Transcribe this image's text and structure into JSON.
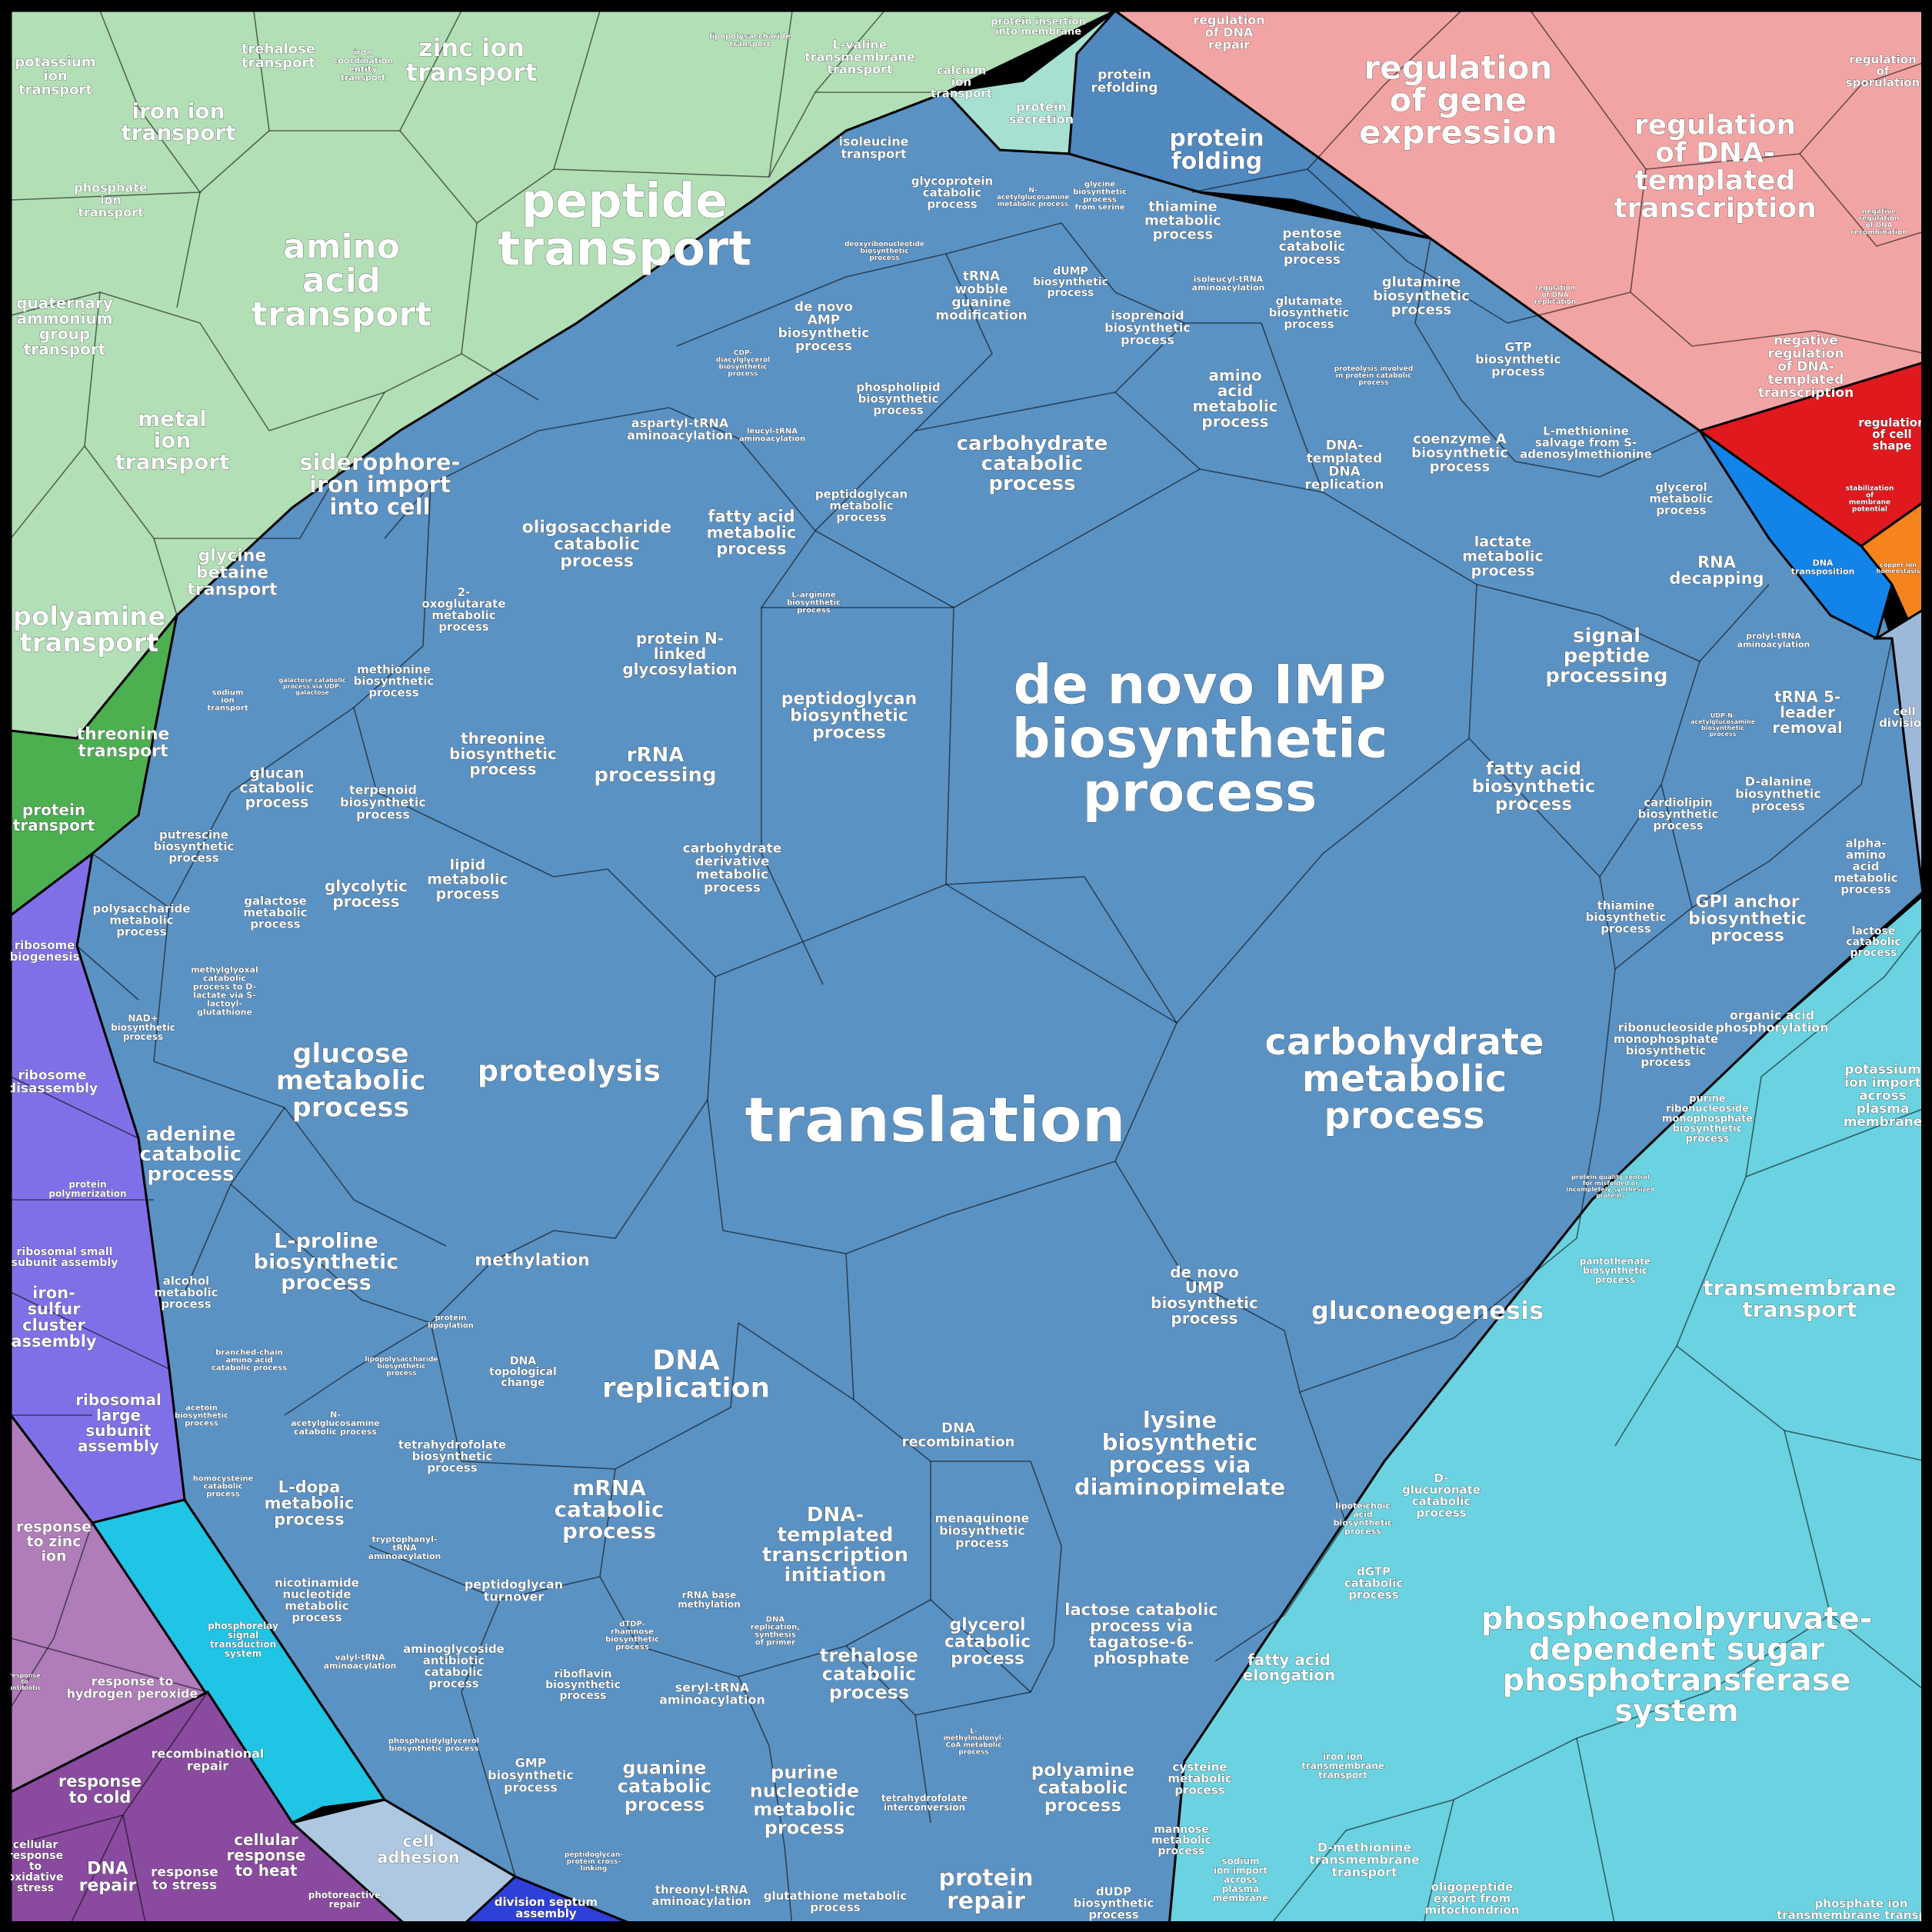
{
  "colors": {
    "transport_green": "#b3dfb6",
    "protein_transport_green": "#4caf50",
    "secretion_mint": "#a6e0d2",
    "folding_blue": "#5088c0",
    "metabolism_blue": "#5b92c4",
    "regulation_pink": "#f2a4a4",
    "cell_shape_red": "#e0191f",
    "copper_orange": "#f6841d",
    "dna_transposition_blue": "#1283e8",
    "cell_division_lightblue": "#9db8d8",
    "transmembrane_cyan": "#6ad2e0",
    "ribosome_purple": "#8070e8",
    "phosphorelay_cyan": "#20c4e4",
    "cell_adhesion_grey": "#adc8e0",
    "division_septum_blue": "#2d40d8",
    "stress_mauve": "#b07cba",
    "dna_repair_purple": "#8a4aa0"
  },
  "labels": {
    "potassium_ion_transport": [
      "potassium",
      "ion",
      "transport"
    ],
    "trehalose_transport": [
      "trehalose",
      "transport"
    ],
    "iron_coordination_entity_transport": [
      "iron",
      "coordination",
      "entity",
      "transport"
    ],
    "zinc_ion_transport": [
      "zinc ion",
      "transport"
    ],
    "lipopolysaccharide_transport": [
      "lipopolysaccharide",
      "transport"
    ],
    "l_valine_transmembrane_transport": [
      "L-valine",
      "transmembrane",
      "transport"
    ],
    "calcium_ion_transport": [
      "calcium",
      "ion",
      "transport"
    ],
    "protein_insertion_into_membrane": [
      "protein insertion",
      "into membrane"
    ],
    "iron_ion_transport": [
      "iron ion",
      "transport"
    ],
    "phosphate_ion_transport": [
      "phosphate",
      "ion",
      "transport"
    ],
    "amino_acid_transport": [
      "amino",
      "acid",
      "transport"
    ],
    "peptide_transport": [
      "peptide",
      "transport"
    ],
    "isoleucine_transport": [
      "isoleucine",
      "transport"
    ],
    "protein_secretion": [
      "protein",
      "secretion"
    ],
    "quaternary_ammonium_group_transport": [
      "quaternary",
      "ammonium",
      "group",
      "transport"
    ],
    "metal_ion_transport": [
      "metal",
      "ion",
      "transport"
    ],
    "siderophore_iron_import_into_cell": [
      "siderophore-",
      "iron import",
      "into cell"
    ],
    "glycine_betaine_transport": [
      "glycine",
      "betaine",
      "transport"
    ],
    "polyamine_transport": [
      "polyamine",
      "transport"
    ],
    "sodium_ion_transport": [
      "sodium",
      "ion",
      "transport"
    ],
    "threonine_transport": [
      "threonine",
      "transport"
    ],
    "protein_transport": [
      "protein",
      "transport"
    ],
    "protein_refolding": [
      "protein",
      "refolding"
    ],
    "protein_folding": [
      "protein",
      "folding"
    ],
    "regulation_of_dna_repair": [
      "regulation",
      "of DNA",
      "repair"
    ],
    "regulation_of_gene_expression": [
      "regulation",
      "of gene",
      "expression"
    ],
    "regulation_of_sporulation": [
      "regulation",
      "of",
      "sporulation"
    ],
    "regulation_of_dna_templated_transcription": [
      "regulation",
      "of DNA-",
      "templated",
      "transcription"
    ],
    "negative_regulation_of_dna_recombination": [
      "negative",
      "regulation",
      "of DNA",
      "recombination"
    ],
    "regulation_of_dna_replication": [
      "regulation",
      "of DNA",
      "replication"
    ],
    "negative_regulation_of_dna_templated_transcription": [
      "negative",
      "regulation",
      "of DNA-",
      "templated",
      "transcription"
    ],
    "regulation_of_cell_shape": [
      "regulation",
      "of cell",
      "shape"
    ],
    "stabilization_of_membrane_potential": [
      "stabilization",
      "of",
      "membrane",
      "potential"
    ],
    "copper_ion_homeostasis": [
      "copper ion",
      "homeostasis"
    ],
    "dna_transposition": [
      "DNA",
      "transposition"
    ],
    "cell_division": [
      "cell",
      "division"
    ],
    "glycoprotein_catabolic_process": [
      "glycoprotein",
      "catabolic",
      "process"
    ],
    "n_acetylglucosamine_metabolic_process": [
      "N-",
      "acetylglucosamine",
      "metabolic process"
    ],
    "glycine_biosynthetic_process_from_serine": [
      "glycine",
      "biosynthetic",
      "process",
      "from serine"
    ],
    "thiamine_metabolic_process": [
      "thiamine",
      "metabolic",
      "process"
    ],
    "pentose_catabolic_process": [
      "pentose",
      "catabolic",
      "process"
    ],
    "deoxyribonucleotide_biosynthetic_process": [
      "deoxyribonucleotide",
      "biosynthetic",
      "process"
    ],
    "trna_wobble_guanine_modification": [
      "tRNA",
      "wobble",
      "guanine",
      "modification"
    ],
    "dump_biosynthetic_process": [
      "dUMP",
      "biosynthetic",
      "process"
    ],
    "isoleucyl_trna_aminoacylation": [
      "isoleucyl-tRNA",
      "aminoacylation"
    ],
    "glutamate_biosynthetic_process": [
      "glutamate",
      "biosynthetic",
      "process"
    ],
    "glutamine_biosynthetic_process": [
      "glutamine",
      "biosynthetic",
      "process"
    ],
    "de_novo_amp_biosynthetic_process": [
      "de novo",
      "AMP",
      "biosynthetic",
      "process"
    ],
    "cdp_diacylglycerol_biosynthetic_process": [
      "CDP-",
      "diacylglycerol",
      "biosynthetic",
      "process"
    ],
    "isoprenoid_biosynthetic_process": [
      "isoprenoid",
      "biosynthetic",
      "process"
    ],
    "amino_acid_metabolic_process": [
      "amino",
      "acid",
      "metabolic",
      "process"
    ],
    "proteolysis_involved_in_protein_catabolic_process": [
      "proteolysis involved",
      "in protein catabolic",
      "process"
    ],
    "gtp_biosynthetic_process": [
      "GTP",
      "biosynthetic",
      "process"
    ],
    "phospholipid_biosynthetic_process": [
      "phospholipid",
      "biosynthetic",
      "process"
    ],
    "carbohydrate_catabolic_process": [
      "carbohydrate",
      "catabolic",
      "process"
    ],
    "dna_templated_dna_replication": [
      "DNA-",
      "templated",
      "DNA",
      "replication"
    ],
    "coenzyme_a_biosynthetic_process": [
      "coenzyme A",
      "biosynthetic",
      "process"
    ],
    "l_methionine_salvage_from_s_adenosylmethionine": [
      "L-methionine",
      "salvage from S-",
      "adenosylmethionine"
    ],
    "aspartyl_trna_aminoacylation": [
      "aspartyl-tRNA",
      "aminoacylation"
    ],
    "leucyl_trna_aminoacylation": [
      "leucyl-tRNA",
      "aminoacylation"
    ],
    "peptidoglycan_metabolic_process": [
      "peptidoglycan",
      "metabolic",
      "process"
    ],
    "glycerol_metabolic_process": [
      "glycerol",
      "metabolic",
      "process"
    ],
    "oligosaccharide_catabolic_process": [
      "oligosaccharide",
      "catabolic",
      "process"
    ],
    "fatty_acid_metabolic_process": [
      "fatty acid",
      "metabolic",
      "process"
    ],
    "lactate_metabolic_process": [
      "lactate",
      "metabolic",
      "process"
    ],
    "rna_decapping": [
      "RNA",
      "decapping"
    ],
    "l_arginine_biosynthetic_process": [
      "L-arginine",
      "biosynthetic",
      "process"
    ],
    "two_oxoglutarate_metabolic_process": [
      "2-",
      "oxoglutarate",
      "metabolic",
      "process"
    ],
    "protein_n_linked_glycosylation": [
      "protein N-",
      "linked",
      "glycosylation"
    ],
    "de_novo_imp_biosynthetic_process": [
      "de novo IMP",
      "biosynthetic",
      "process"
    ],
    "signal_peptide_processing": [
      "signal",
      "peptide",
      "processing"
    ],
    "prolyl_trna_aminoacylation": [
      "prolyl-tRNA",
      "aminoacylation"
    ],
    "methionine_biosynthetic_process": [
      "methionine",
      "biosynthetic",
      "process"
    ],
    "trna_5_leader_removal": [
      "tRNA 5-",
      "leader",
      "removal"
    ],
    "galactose_catabolic_process_via_udp_galactose": [
      "galactose catabolic",
      "process via UDP-",
      "galactose"
    ],
    "threonine_biosynthetic_process": [
      "threonine",
      "biosynthetic",
      "process"
    ],
    "rrna_processing": [
      "rRNA",
      "processing"
    ],
    "peptidoglycan_biosynthetic_process": [
      "peptidoglycan",
      "biosynthetic",
      "process"
    ],
    "udp_n_acetylglucosamine_biosynthetic_process": [
      "UDP-N-",
      "acetylglucosamine",
      "biosynthetic",
      "process"
    ],
    "glucan_catabolic_process": [
      "glucan",
      "catabolic",
      "process"
    ],
    "terpenoid_biosynthetic_process": [
      "terpenoid",
      "biosynthetic",
      "process"
    ],
    "fatty_acid_biosynthetic_process": [
      "fatty acid",
      "biosynthetic",
      "process"
    ],
    "d_alanine_biosynthetic_process": [
      "D-alanine",
      "biosynthetic",
      "process"
    ],
    "cardiolipin_biosynthetic_process": [
      "cardiolipin",
      "biosynthetic",
      "process"
    ],
    "putrescine_biosynthetic_process": [
      "putrescine",
      "biosynthetic",
      "process"
    ],
    "lipid_metabolic_process": [
      "lipid",
      "metabolic",
      "process"
    ],
    "carbohydrate_derivative_metabolic_process": [
      "carbohydrate",
      "derivative",
      "metabolic",
      "process"
    ],
    "alpha_amino_acid_metabolic_process": [
      "alpha-",
      "amino",
      "acid",
      "metabolic",
      "process"
    ],
    "galactose_metabolic_process": [
      "galactose",
      "metabolic",
      "process"
    ],
    "glycolytic_process": [
      "glycolytic",
      "process"
    ],
    "polysaccharide_metabolic_process": [
      "polysaccharide",
      "metabolic",
      "process"
    ],
    "thiamine_biosynthetic_process": [
      "thiamine",
      "biosynthetic",
      "process"
    ],
    "gpi_anchor_biosynthetic_process": [
      "GPI anchor",
      "biosynthetic",
      "process"
    ],
    "lactose_catabolic_process": [
      "lactose",
      "catabolic",
      "process"
    ],
    "methylglyoxal_catabolic_process": [
      "methylglyoxal",
      "catabolic",
      "process to D-",
      "lactate via S-",
      "lactoyl-",
      "glutathione"
    ],
    "organic_acid_phosphorylation": [
      "organic acid",
      "phosphorylation"
    ],
    "nad_biosynthetic_process": [
      "NAD+",
      "biosynthetic",
      "process"
    ],
    "glucose_metabolic_process": [
      "glucose",
      "metabolic",
      "process"
    ],
    "proteolysis": [
      "proteolysis"
    ],
    "translation": [
      "translation"
    ],
    "carbohydrate_metabolic_process": [
      "carbohydrate",
      "metabolic",
      "process"
    ],
    "ribonucleoside_monophosphate_biosynthetic_process": [
      "ribonucleoside",
      "monophosphate",
      "biosynthetic",
      "process"
    ],
    "purine_ribonucleoside_monophosphate_biosynthetic_process": [
      "purine",
      "ribonucleoside",
      "monophosphate",
      "biosynthetic",
      "process"
    ],
    "adenine_catabolic_process": [
      "adenine",
      "catabolic",
      "process"
    ],
    "protein_quality_control": [
      "protein quality control",
      "for misfolded or",
      "incompletely synthesized",
      "proteins"
    ],
    "potassium_ion_import_across_plasma_membrane": [
      "potassium",
      "ion import",
      "across",
      "plasma",
      "membrane"
    ],
    "l_proline_biosynthetic_process": [
      "L-proline",
      "biosynthetic",
      "process"
    ],
    "methylation": [
      "methylation"
    ],
    "de_novo_ump_biosynthetic_process": [
      "de novo",
      "UMP",
      "biosynthetic",
      "process"
    ],
    "gluconeogenesis": [
      "gluconeogenesis"
    ],
    "pantothenate_biosynthetic_process": [
      "pantothenate",
      "biosynthetic",
      "process"
    ],
    "transmembrane_transport": [
      "transmembrane",
      "transport"
    ],
    "alcohol_metabolic_process": [
      "alcohol",
      "metabolic",
      "process"
    ],
    "protein_lipoylation": [
      "protein",
      "lipoylation"
    ],
    "branched_chain_amino_acid_catabolic_process": [
      "branched-chain",
      "amino acid",
      "catabolic process"
    ],
    "lipopolysaccharide_biosynthetic_process": [
      "lipopolysaccharide",
      "biosynthetic",
      "process"
    ],
    "dna_topological_change": [
      "DNA",
      "topological",
      "change"
    ],
    "dna_replication": [
      "DNA",
      "replication"
    ],
    "dna_recombination": [
      "DNA",
      "recombination"
    ],
    "lysine_biosynthetic_process_via_diaminopimelate": [
      "lysine",
      "biosynthetic",
      "process via",
      "diaminopimelate"
    ],
    "acetoin_biosynthetic_process": [
      "acetoin",
      "biosynthetic",
      "process"
    ],
    "n_acetylglucosamine_catabolic_process": [
      "N-",
      "acetylglucosamine",
      "catabolic process"
    ],
    "tetrahydrofolate_biosynthetic_process": [
      "tetrahydrofolate",
      "biosynthetic",
      "process"
    ],
    "homocysteine_catabolic_process": [
      "homocysteine",
      "catabolic",
      "process"
    ],
    "l_dopa_metabolic_process": [
      "L-dopa",
      "metabolic",
      "process"
    ],
    "mrna_catabolic_process": [
      "mRNA",
      "catabolic",
      "process"
    ],
    "dna_templated_transcription_initiation": [
      "DNA-",
      "templated",
      "transcription",
      "initiation"
    ],
    "menaquinone_biosynthetic_process": [
      "menaquinone",
      "biosynthetic",
      "process"
    ],
    "teichoic_acid_biosynthetic_process": [
      "lipoteichoic",
      "acid",
      "biosynthetic",
      "process"
    ],
    "d_glucuronate_catabolic_process": [
      "D-",
      "glucuronate",
      "catabolic",
      "process"
    ],
    "tryptophanyl_trna_aminoacylation": [
      "tryptophanyl-",
      "tRNA",
      "aminoacylation"
    ],
    "dgtp_catabolic_process": [
      "dGTP",
      "catabolic",
      "process"
    ],
    "nicotinamide_nucleotide_metabolic_process": [
      "nicotinamide",
      "nucleotide",
      "metabolic",
      "process"
    ],
    "peptidoglycan_turnover": [
      "peptidoglycan",
      "turnover"
    ],
    "rrna_base_methylation": [
      "rRNA base",
      "methylation"
    ],
    "dna_replication_synthesis_of_rna_primer": [
      "DNA",
      "replication,",
      "synthesis",
      "of primer"
    ],
    "glycerol_catabolic_process": [
      "glycerol",
      "catabolic",
      "process"
    ],
    "lactose_catabolic_process_via_tagatose_6_phosphate": [
      "lactose catabolic",
      "process via",
      "tagatose-6-",
      "phosphate"
    ],
    "fatty_acid_elongation": [
      "fatty acid",
      "elongation"
    ],
    "valyl_trna_aminoacylation": [
      "valyl-tRNA",
      "aminoacylation"
    ],
    "aminoglycoside_antibiotic_catabolic_process": [
      "aminoglycoside",
      "antibiotic",
      "catabolic",
      "process"
    ],
    "dtdp_rhamnose_biosynthetic_process": [
      "dTDP-",
      "rhamnose",
      "biosynthetic",
      "process"
    ],
    "riboflavin_biosynthetic_process": [
      "riboflavin",
      "biosynthetic",
      "process"
    ],
    "seryl_trna_aminoacylation": [
      "seryl-tRNA",
      "aminoacylation"
    ],
    "trehalose_catabolic_process": [
      "trehalose",
      "catabolic",
      "process"
    ],
    "l_methylmalonyl_coa_metabolic_process": [
      "L-",
      "methylmalonyl-",
      "CoA metabolic",
      "process"
    ],
    "phosphatidylglycerol_biosynthetic_process": [
      "phosphatidylglycerol",
      "biosynthetic process"
    ],
    "gmp_biosynthetic_process": [
      "GMP",
      "biosynthetic",
      "process"
    ],
    "guanine_catabolic_process": [
      "guanine",
      "catabolic",
      "process"
    ],
    "purine_nucleotide_metabolic_process": [
      "purine",
      "nucleotide",
      "metabolic",
      "process"
    ],
    "tetrahydrofolate_interconversion": [
      "tetrahydrofolate",
      "interconversion"
    ],
    "polyamine_catabolic_process": [
      "polyamine",
      "catabolic",
      "process"
    ],
    "cysteine_metabolic_process": [
      "cysteine",
      "metabolic",
      "process"
    ],
    "mannose_metabolic_process": [
      "mannose",
      "metabolic",
      "process"
    ],
    "peptidoglycan_protein_cross_linking": [
      "peptidoglycan-",
      "protein cross-",
      "linking"
    ],
    "threonyl_trna_aminoacylation": [
      "threonyl-tRNA",
      "aminoacylation"
    ],
    "glutathione_metabolic_process": [
      "glutathione metabolic",
      "process"
    ],
    "protein_repair": [
      "protein",
      "repair"
    ],
    "dudp_biosynthetic_process": [
      "dUDP",
      "biosynthetic",
      "process"
    ],
    "phosphoenolpyruvate_dependent_sugar_phosphotransferase_system": [
      "phosphoenolpyruvate-",
      "dependent sugar",
      "phosphotransferase",
      "system"
    ],
    "iron_ion_transmembrane_transport": [
      "iron ion",
      "transmembrane",
      "transport"
    ],
    "d_methionine_transmembrane_transport": [
      "D-methionine",
      "transmembrane",
      "transport"
    ],
    "sodium_ion_import_across_plasma_membrane": [
      "sodium",
      "ion import",
      "across",
      "plasma",
      "membrane"
    ],
    "oligopeptide_export_from_mitochondrion": [
      "oligopeptide",
      "export from",
      "mitochondrion"
    ],
    "phosphate_ion_transmembrane_transport": [
      "phosphate ion",
      "transmembrane transport"
    ],
    "ribosome_biogenesis": [
      "ribosome",
      "biogenesis"
    ],
    "ribosome_disassembly": [
      "ribosome",
      "disassembly"
    ],
    "protein_polymerization": [
      "protein",
      "polymerization"
    ],
    "ribosomal_small_subunit_assembly": [
      "ribosomal small",
      "subunit assembly"
    ],
    "iron_sulfur_cluster_assembly": [
      "iron-",
      "sulfur",
      "cluster",
      "assembly"
    ],
    "ribosomal_large_subunit_assembly": [
      "ribosomal",
      "large",
      "subunit",
      "assembly"
    ],
    "phosphorelay_signal_transduction_system": [
      "phosphorelay",
      "signal",
      "transduction",
      "system"
    ],
    "response_to_zinc_ion": [
      "response",
      "to zinc",
      "ion"
    ],
    "response_to_antibiotic": [
      "response",
      "to",
      "antibiotic"
    ],
    "response_to_hydrogen_peroxide": [
      "response to",
      "hydrogen peroxide"
    ],
    "recombinational_repair": [
      "recombinational",
      "repair"
    ],
    "response_to_cold": [
      "response",
      "to cold"
    ],
    "cellular_response_to_oxidative_stress": [
      "cellular",
      "response",
      "to",
      "oxidative",
      "stress"
    ],
    "dna_repair": [
      "DNA",
      "repair"
    ],
    "response_to_stress": [
      "response",
      "to stress"
    ],
    "cellular_response_to_heat": [
      "cellular",
      "response",
      "to heat"
    ],
    "photoreactive_repair": [
      "photoreactive",
      "repair"
    ],
    "cell_adhesion": [
      "cell",
      "adhesion"
    ],
    "division_septum_assembly": [
      "division septum",
      "assembly"
    ]
  }
}
